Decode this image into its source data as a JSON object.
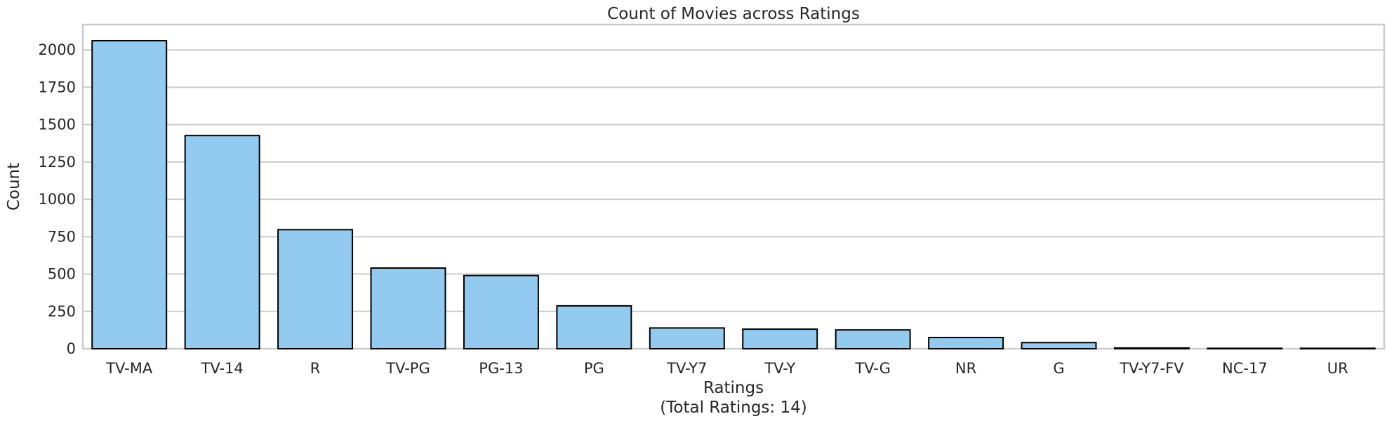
{
  "chart_data": {
    "type": "bar",
    "title": "Count of Movies across Ratings",
    "xlabel_line1": "Ratings",
    "xlabel_line2": "(Total Ratings: 14)",
    "ylabel": "Count",
    "categories": [
      "TV-MA",
      "TV-14",
      "R",
      "TV-PG",
      "PG-13",
      "PG",
      "TV-Y7",
      "TV-Y",
      "TV-G",
      "NR",
      "G",
      "TV-Y7-FV",
      "NC-17",
      "UR"
    ],
    "values": [
      2062,
      1427,
      797,
      540,
      490,
      287,
      139,
      131,
      126,
      75,
      41,
      5,
      3,
      3
    ],
    "ylim": [
      0,
      2170
    ],
    "yticks": [
      0,
      250,
      500,
      750,
      1000,
      1250,
      1500,
      1750,
      2000
    ],
    "grid": "horizontal",
    "bar_color": "#93CAF0",
    "bar_edge_color": "#000000",
    "grid_color": "#cccccc",
    "frame_color": "#cccccc"
  }
}
